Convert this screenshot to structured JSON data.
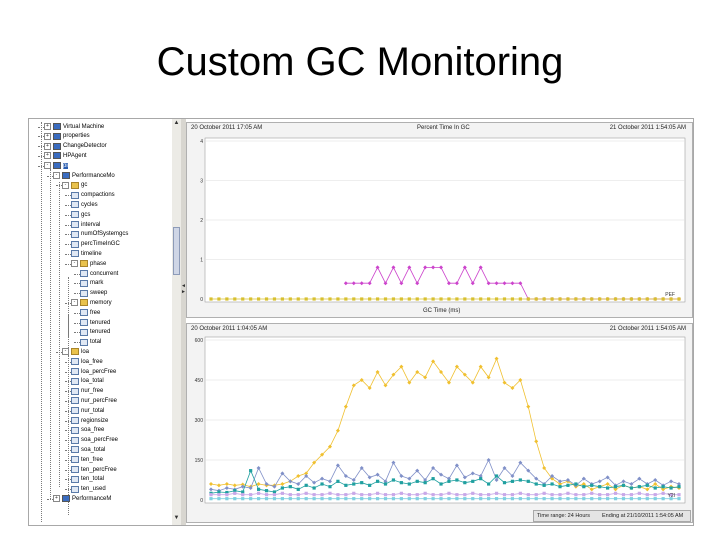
{
  "slide": {
    "title": "Custom GC Monitoring"
  },
  "tree": {
    "items": [
      {
        "label": "Virtual Machine",
        "icon": "bean-icon"
      },
      {
        "label": "properties",
        "icon": "bean-icon"
      },
      {
        "label": "ChangeDetector",
        "icon": "bean-icon"
      },
      {
        "label": "HPAgent",
        "icon": "bean-icon"
      },
      {
        "label": "pi",
        "icon": "bean-icon"
      },
      {
        "label": "PerformanceMo",
        "icon": "bean-icon"
      },
      {
        "label": "gc",
        "icon": "folder-icon"
      },
      {
        "label": "compactions",
        "icon": "attribute-icon"
      },
      {
        "label": "cycles",
        "icon": "attribute-icon"
      },
      {
        "label": "gcs",
        "icon": "attribute-icon"
      },
      {
        "label": "interval",
        "icon": "attribute-icon"
      },
      {
        "label": "numOfSystemgcs",
        "icon": "attribute-icon"
      },
      {
        "label": "percTimeInGC",
        "icon": "attribute-icon"
      },
      {
        "label": "timeline",
        "icon": "attribute-icon"
      },
      {
        "label": "phase",
        "icon": "folder-icon"
      },
      {
        "label": "concurrent",
        "icon": "attribute-icon"
      },
      {
        "label": "mark",
        "icon": "attribute-icon"
      },
      {
        "label": "sweep",
        "icon": "attribute-icon"
      },
      {
        "label": "memory",
        "icon": "folder-icon"
      },
      {
        "label": "free",
        "icon": "attribute-icon"
      },
      {
        "label": "tenured",
        "icon": "attribute-icon"
      },
      {
        "label": "tenured",
        "icon": "attribute-icon"
      },
      {
        "label": "total",
        "icon": "attribute-icon"
      },
      {
        "label": "loa",
        "icon": "folder-icon"
      },
      {
        "label": "loa_free",
        "icon": "attribute-icon"
      },
      {
        "label": "loa_percFree",
        "icon": "attribute-icon"
      },
      {
        "label": "loa_total",
        "icon": "attribute-icon"
      },
      {
        "label": "nur_free",
        "icon": "attribute-icon"
      },
      {
        "label": "nur_percFree",
        "icon": "attribute-icon"
      },
      {
        "label": "nur_total",
        "icon": "attribute-icon"
      },
      {
        "label": "regionsize",
        "icon": "attribute-icon"
      },
      {
        "label": "soa_free",
        "icon": "attribute-icon"
      },
      {
        "label": "soa_percFree",
        "icon": "attribute-icon"
      },
      {
        "label": "soa_total",
        "icon": "attribute-icon"
      },
      {
        "label": "ten_free",
        "icon": "attribute-icon"
      },
      {
        "label": "ten_percFree",
        "icon": "attribute-icon"
      },
      {
        "label": "ten_total",
        "icon": "attribute-icon"
      },
      {
        "label": "ten_used",
        "icon": "attribute-icon"
      },
      {
        "label": "PerformanceM",
        "icon": "bean-icon"
      }
    ]
  },
  "chart_top": {
    "title": "Percent Time In GC",
    "start": "20 October 2011 17:05 AM",
    "end": "21 October 2011 1:54:05 AM",
    "xlabel": "GC Time (ms)",
    "y_ticks": [
      "0",
      "1",
      "2",
      "3",
      "4"
    ],
    "end_label": "PEF"
  },
  "chart_bottom": {
    "start": "20 October 2011 1:04:05 AM",
    "end": "21 October 2011 1:54:05 AM",
    "y_ticks": [
      "0",
      "150",
      "300",
      "450",
      "600"
    ],
    "end_label": "Y2I",
    "footer_range": "Time range: 24 Hours",
    "footer_ending": "Ending at 21/10/2011 1:54:05 AM"
  },
  "chart_data": [
    {
      "type": "line",
      "title": "Percent Time In GC",
      "xlabel": "GC Time (ms)",
      "ylim": [
        0,
        4
      ],
      "x": [
        0,
        1,
        2,
        3,
        4,
        5,
        6,
        7,
        8,
        9,
        10,
        11,
        12,
        13,
        14,
        15,
        16,
        17,
        18,
        19,
        20,
        21,
        22,
        23,
        24,
        25,
        26,
        27,
        28,
        29,
        30,
        31,
        32,
        33,
        34,
        35,
        36,
        37,
        38,
        39,
        40,
        41,
        42,
        43,
        44,
        45,
        46,
        47,
        48,
        49,
        50,
        51,
        52,
        53,
        54,
        55,
        56,
        57,
        58,
        59
      ],
      "series": [
        {
          "color": "#cc44cc",
          "values": [
            null,
            null,
            null,
            null,
            null,
            null,
            null,
            null,
            null,
            null,
            null,
            null,
            null,
            null,
            null,
            null,
            null,
            0.4,
            0.4,
            0.4,
            0.4,
            0.8,
            0.4,
            0.8,
            0.4,
            0.8,
            0.4,
            0.8,
            0.8,
            0.8,
            0.4,
            0.4,
            0.8,
            0.4,
            0.8,
            0.4,
            0.4,
            0.4,
            0.4,
            0.4,
            0,
            0,
            0,
            0,
            0,
            0,
            0,
            0,
            0,
            0,
            0,
            0,
            0,
            0,
            0,
            0,
            0,
            0,
            0,
            0
          ]
        },
        {
          "color": "#d8c030",
          "values": [
            0,
            0,
            0,
            0,
            0,
            0,
            0,
            0,
            0,
            0,
            0,
            0,
            0,
            0,
            0,
            0,
            0,
            0,
            0,
            0,
            0,
            0,
            0,
            0,
            0,
            0,
            0,
            0,
            0,
            0,
            0,
            0,
            0,
            0,
            0,
            0,
            0,
            0,
            0,
            0,
            0,
            0,
            0,
            0,
            0,
            0,
            0,
            0,
            0,
            0,
            0,
            0,
            0,
            0,
            0,
            0,
            0,
            0,
            0,
            0
          ]
        }
      ]
    },
    {
      "type": "line",
      "ylim": [
        0,
        600
      ],
      "x": [
        0,
        1,
        2,
        3,
        4,
        5,
        6,
        7,
        8,
        9,
        10,
        11,
        12,
        13,
        14,
        15,
        16,
        17,
        18,
        19,
        20,
        21,
        22,
        23,
        24,
        25,
        26,
        27,
        28,
        29,
        30,
        31,
        32,
        33,
        34,
        35,
        36,
        37,
        38,
        39,
        40,
        41,
        42,
        43,
        44,
        45,
        46,
        47,
        48,
        49,
        50,
        51,
        52,
        53,
        54,
        55,
        56,
        57,
        58,
        59
      ],
      "series": [
        {
          "color": "#f0c030",
          "values": [
            60,
            55,
            60,
            55,
            58,
            50,
            60,
            55,
            55,
            60,
            70,
            90,
            100,
            140,
            170,
            200,
            260,
            350,
            430,
            450,
            420,
            480,
            430,
            470,
            500,
            440,
            480,
            460,
            520,
            480,
            440,
            500,
            470,
            440,
            500,
            460,
            530,
            440,
            420,
            450,
            350,
            220,
            120,
            80,
            60,
            70,
            50,
            60,
            40,
            50,
            60,
            40,
            55,
            45,
            50,
            40,
            60,
            40,
            50,
            45
          ]
        },
        {
          "color": "#8090c8",
          "values": [
            40,
            35,
            45,
            40,
            50,
            45,
            120,
            60,
            50,
            100,
            70,
            60,
            90,
            65,
            80,
            70,
            130,
            90,
            75,
            120,
            85,
            95,
            70,
            140,
            90,
            80,
            110,
            75,
            120,
            95,
            80,
            130,
            85,
            100,
            90,
            150,
            75,
            120,
            90,
            140,
            110,
            80,
            60,
            90,
            70,
            75,
            55,
            80,
            60,
            70,
            85,
            55,
            70,
            60,
            80,
            60,
            75,
            55,
            70,
            60
          ]
        },
        {
          "color": "#20a0a0",
          "values": [
            25,
            30,
            28,
            35,
            30,
            110,
            40,
            35,
            30,
            45,
            50,
            40,
            55,
            45,
            60,
            50,
            70,
            55,
            60,
            65,
            55,
            70,
            60,
            75,
            65,
            60,
            70,
            65,
            80,
            60,
            70,
            75,
            65,
            70,
            80,
            60,
            90,
            65,
            70,
            75,
            70,
            60,
            55,
            60,
            50,
            55,
            60,
            50,
            55,
            50,
            45,
            50,
            55,
            45,
            50,
            55,
            45,
            50,
            45,
            50
          ]
        },
        {
          "color": "#c8a8e8",
          "values": [
            20,
            20,
            20,
            25,
            20,
            20,
            25,
            20,
            20,
            25,
            20,
            20,
            25,
            20,
            20,
            25,
            20,
            20,
            25,
            20,
            20,
            25,
            20,
            20,
            25,
            20,
            20,
            25,
            20,
            20,
            25,
            20,
            20,
            25,
            20,
            20,
            25,
            20,
            20,
            25,
            20,
            20,
            25,
            20,
            20,
            25,
            20,
            20,
            25,
            20,
            20,
            25,
            20,
            20,
            25,
            20,
            20,
            25,
            20,
            20
          ]
        },
        {
          "color": "#7fd0e0",
          "values": [
            5,
            5,
            5,
            5,
            5,
            5,
            5,
            5,
            5,
            5,
            5,
            5,
            5,
            5,
            5,
            5,
            5,
            5,
            5,
            5,
            5,
            5,
            5,
            5,
            5,
            5,
            5,
            5,
            5,
            5,
            5,
            5,
            5,
            5,
            5,
            5,
            5,
            5,
            5,
            5,
            5,
            5,
            5,
            5,
            5,
            5,
            5,
            5,
            5,
            5,
            5,
            5,
            5,
            5,
            5,
            5,
            5,
            5,
            5,
            5
          ]
        }
      ]
    }
  ]
}
